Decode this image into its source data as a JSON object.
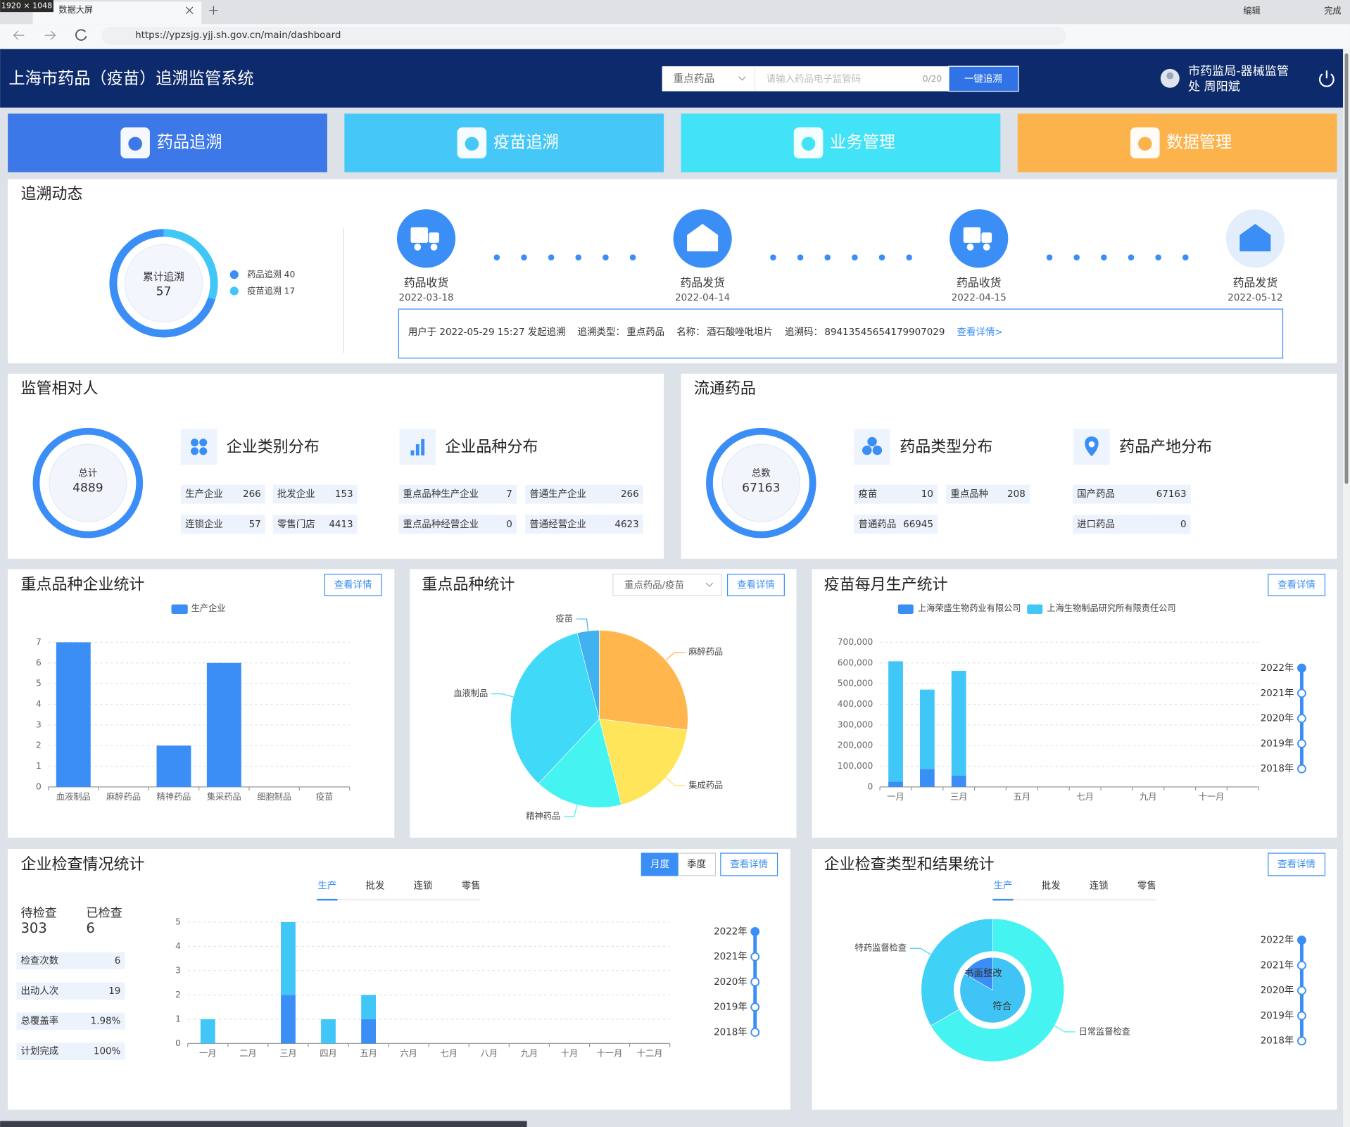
{
  "browser": {
    "size_badge": "1920 × 1048",
    "tab_title": "数据大屏",
    "url": "https://ypzsjg.yjj.sh.gov.cn/main/dashboard",
    "edit": "编辑",
    "done": "完成"
  },
  "header": {
    "title": "上海市药品（疫苗）追溯监管系统",
    "search_type": "重点药品",
    "search_placeholder": "请输入药品电子监管码",
    "search_count": "0/20",
    "search_button": "一键追溯",
    "user_lines": [
      "市药监局-器械监管",
      "处 周阳斌"
    ]
  },
  "nav": [
    {
      "label": "药品追溯",
      "color": "#3c78e8"
    },
    {
      "label": "疫苗追溯",
      "color": "#45c8f7"
    },
    {
      "label": "业务管理",
      "color": "#42e2f7"
    },
    {
      "label": "数据管理",
      "color": "#fcb34b"
    }
  ],
  "trace": {
    "title": "追溯动态",
    "donut": {
      "type": "donut",
      "center_label": "累计追溯",
      "total": 57,
      "series": [
        {
          "name": "药品追溯",
          "value": 40,
          "color": "#3a8ef6"
        },
        {
          "name": "疫苗追溯",
          "value": 17,
          "color": "#41c7f7"
        }
      ]
    },
    "steps": [
      {
        "label": "药品收货",
        "date": "2022-03-18"
      },
      {
        "label": "药品发货",
        "date": "2022-04-14"
      },
      {
        "label": "药品收货",
        "date": "2022-04-15"
      },
      {
        "label": "药品发货",
        "date": "2022-05-12"
      }
    ],
    "info": {
      "initiated": "用户于 2022-05-29 15:27 发起追溯",
      "type_label": "追溯类型：",
      "type": "重点药品",
      "name_label": "名称：",
      "name": "酒石酸唑吡坦片",
      "code_label": "追溯码：",
      "code": "89413545654179907029",
      "link": "查看详情>"
    }
  },
  "regulated": {
    "title": "监管相对人",
    "total_label": "总计",
    "total": 4889,
    "groups": [
      {
        "title": "企业类别分布",
        "items": [
          {
            "label": "生产企业",
            "value": 266
          },
          {
            "label": "批发企业",
            "value": 153
          },
          {
            "label": "连锁企业",
            "value": 57
          },
          {
            "label": "零售门店",
            "value": 4413
          }
        ]
      },
      {
        "title": "企业品种分布",
        "items": [
          {
            "label": "重点品种生产企业",
            "value": 7
          },
          {
            "label": "普通生产企业",
            "value": 266
          },
          {
            "label": "重点品种经营企业",
            "value": 0
          },
          {
            "label": "普通经营企业",
            "value": 4623
          }
        ]
      }
    ]
  },
  "circulation": {
    "title": "流通药品",
    "total_label": "总数",
    "total": 67163,
    "groups": [
      {
        "title": "药品类型分布",
        "items": [
          {
            "label": "疫苗",
            "value": 10
          },
          {
            "label": "重点品种",
            "value": 208
          },
          {
            "label": "普通药品",
            "value": 66945
          }
        ]
      },
      {
        "title": "药品产地分布",
        "items": [
          {
            "label": "国产药品",
            "value": 67163
          },
          {
            "label": "进口药品",
            "value": 0
          }
        ]
      }
    ]
  },
  "key_enterprise": {
    "title": "重点品种企业统计",
    "button": "查看详情",
    "chart": {
      "type": "bar",
      "categories": [
        "血液制品",
        "麻醉药品",
        "精神药品",
        "集采药品",
        "细胞制品",
        "疫苗"
      ],
      "series": [
        {
          "name": "生产企业",
          "color": "#3a8ef6",
          "values": [
            7,
            0,
            2,
            6,
            0,
            0
          ]
        }
      ],
      "ylim": [
        0,
        7
      ],
      "yticks": [
        0,
        1,
        2,
        3,
        4,
        5,
        6,
        7
      ],
      "grid": true
    }
  },
  "key_variety": {
    "title": "重点品种统计",
    "select": "重点药品/疫苗",
    "button": "查看详情",
    "chart": {
      "type": "pie",
      "categories": [
        "麻醉药品",
        "集成药品",
        "精神药品",
        "血液制品",
        "疫苗"
      ],
      "values": [
        27,
        19,
        16,
        34,
        4
      ],
      "colors": [
        "#ffb74d",
        "#ffe55a",
        "#45f3f0",
        "#40d9f8",
        "#3fb2ef"
      ]
    }
  },
  "vaccine_monthly": {
    "title": "疫苗每月生产统计",
    "button": "查看详情",
    "chart": {
      "type": "bar",
      "stacked": true,
      "categories": [
        "一月",
        null,
        "三月",
        null,
        "五月",
        null,
        "七月",
        null,
        "九月",
        null,
        "十一月",
        null
      ],
      "series": [
        {
          "name": "上海荣盛生物药业有限公司",
          "color": "#3a8ef6",
          "values": [
            25000,
            87000,
            54000,
            0,
            0,
            0,
            0,
            0,
            0,
            0,
            0,
            0
          ]
        },
        {
          "name": "上海生物制品研究所有限责任公司",
          "color": "#41c7f7",
          "values": [
            583000,
            384000,
            508000,
            0,
            0,
            0,
            0,
            0,
            0,
            0,
            0,
            0
          ]
        }
      ],
      "ylim": [
        0,
        700000
      ],
      "yticks": [
        0,
        {
          "value": 100000,
          "label": "100,000"
        },
        {
          "value": 200000,
          "label": "200,000"
        },
        {
          "value": 300000,
          "label": "300,000"
        },
        {
          "value": 400000,
          "label": "400,000"
        },
        {
          "value": 500000,
          "label": "500,000"
        },
        {
          "value": 600000,
          "label": "600,000"
        },
        {
          "value": 700000,
          "label": "700,000"
        }
      ],
      "grid": true
    },
    "years": [
      "2022年",
      "2021年",
      "2020年",
      "2019年",
      "2018年"
    ]
  },
  "inspection": {
    "title": "企业检查情况统计",
    "tabs": [
      "月度",
      "季度"
    ],
    "button": "查看详情",
    "subtabs": [
      "生产",
      "批发",
      "连锁",
      "零售"
    ],
    "pending_label": "待检查",
    "pending": 303,
    "done_label": "已检查",
    "done": 6,
    "stats": [
      {
        "label": "检查次数",
        "value": 6
      },
      {
        "label": "出动人次",
        "value": 19
      },
      {
        "label": "总覆盖率",
        "value": "1.98%"
      },
      {
        "label": "计划完成",
        "value": "100%"
      }
    ],
    "chart": {
      "type": "bar",
      "stacked": true,
      "categories": [
        "一月",
        "二月",
        "三月",
        "四月",
        "五月",
        "六月",
        "七月",
        "八月",
        "九月",
        "十月",
        "十一月",
        "十二月"
      ],
      "series": [
        {
          "color": "#3a8ef6",
          "values": [
            0,
            0,
            2,
            0,
            1,
            0,
            0,
            0,
            0,
            0,
            0,
            0
          ]
        },
        {
          "color": "#41c7f7",
          "values": [
            1,
            0,
            3,
            1,
            1,
            0,
            0,
            0,
            0,
            0,
            0,
            0
          ]
        }
      ],
      "ylim": [
        0,
        5
      ],
      "yticks": [
        0,
        1,
        2,
        3,
        4,
        5
      ],
      "grid": true
    },
    "years": [
      "2022年",
      "2021年",
      "2020年",
      "2019年",
      "2018年"
    ]
  },
  "inspection_type": {
    "title": "企业检查类型和结果统计",
    "button": "查看详情",
    "subtabs": [
      "生产",
      "批发",
      "连锁",
      "零售"
    ],
    "chart": {
      "type": "nested_pie",
      "outer": {
        "categories": [
          "日常监督检查",
          "特药监督检查"
        ],
        "values": [
          4,
          2
        ],
        "colors": [
          "#45f3f0",
          "#3fd2f6"
        ]
      },
      "inner": {
        "categories": [
          "符合",
          "书面整改"
        ],
        "values": [
          5,
          1
        ],
        "colors": [
          "#40c3f5",
          "#3a8ef6"
        ]
      }
    },
    "years": [
      "2022年",
      "2021年",
      "2020年",
      "2019年",
      "2018年"
    ]
  }
}
